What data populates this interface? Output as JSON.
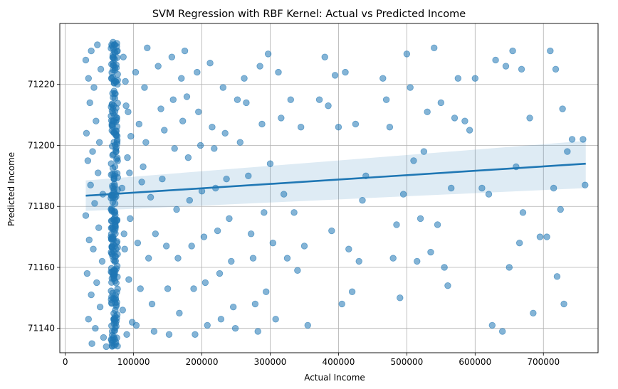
{
  "chart_data": {
    "type": "scatter",
    "title": "SVM Regression with RBF Kernel: Actual vs Predicted Income",
    "xlabel": "Actual Income",
    "ylabel": "Predicted Income",
    "xlim": [
      -8000,
      780000
    ],
    "ylim": [
      71132,
      71240
    ],
    "xticks": [
      0,
      100000,
      200000,
      300000,
      400000,
      500000,
      600000,
      700000
    ],
    "yticks": [
      71140,
      71160,
      71180,
      71200,
      71220
    ],
    "grid": true,
    "point_color": "#1f77b4",
    "point_alpha": 0.55,
    "cluster": {
      "x": 72000,
      "x_spread": 10000,
      "y_range": [
        71134,
        71234
      ],
      "count": 260
    },
    "points": [
      [
        30000,
        71228
      ],
      [
        34000,
        71222
      ],
      [
        38000,
        71231
      ],
      [
        42000,
        71219
      ],
      [
        47000,
        71233
      ],
      [
        52000,
        71225
      ],
      [
        36000,
        71214
      ],
      [
        45000,
        71208
      ],
      [
        31000,
        71204
      ],
      [
        50000,
        71201
      ],
      [
        40000,
        71198
      ],
      [
        33000,
        71195
      ],
      [
        48000,
        71191
      ],
      [
        37000,
        71187
      ],
      [
        55000,
        71184
      ],
      [
        43000,
        71181
      ],
      [
        30000,
        71177
      ],
      [
        49000,
        71173
      ],
      [
        35000,
        71169
      ],
      [
        41000,
        71166
      ],
      [
        54000,
        71162
      ],
      [
        32000,
        71158
      ],
      [
        46000,
        71155
      ],
      [
        38000,
        71151
      ],
      [
        51000,
        71147
      ],
      [
        34000,
        71143
      ],
      [
        44000,
        71140
      ],
      [
        56000,
        71137
      ],
      [
        39000,
        71135
      ],
      [
        60000,
        71134
      ],
      [
        85000,
        71229
      ],
      [
        88000,
        71221
      ],
      [
        92000,
        71211
      ],
      [
        96000,
        71203
      ],
      [
        91000,
        71196
      ],
      [
        83000,
        71186
      ],
      [
        95000,
        71176
      ],
      [
        87000,
        71166
      ],
      [
        93000,
        71156
      ],
      [
        84000,
        71146
      ],
      [
        90000,
        71138
      ],
      [
        98000,
        71142
      ],
      [
        86000,
        71171
      ],
      [
        94000,
        71191
      ],
      [
        89000,
        71213
      ],
      [
        103000,
        71224
      ],
      [
        108000,
        71207
      ],
      [
        112000,
        71188
      ],
      [
        106000,
        71168
      ],
      [
        110000,
        71153
      ],
      [
        104000,
        71141
      ],
      [
        116000,
        71219
      ],
      [
        120000,
        71232
      ],
      [
        118000,
        71201
      ],
      [
        125000,
        71183
      ],
      [
        122000,
        71163
      ],
      [
        127000,
        71148
      ],
      [
        114000,
        71193
      ],
      [
        130000,
        71139
      ],
      [
        132000,
        71171
      ],
      [
        136000,
        71226
      ],
      [
        140000,
        71212
      ],
      [
        145000,
        71205
      ],
      [
        142000,
        71189
      ],
      [
        148000,
        71167
      ],
      [
        150000,
        71153
      ],
      [
        152000,
        71138
      ],
      [
        156000,
        71229
      ],
      [
        158000,
        71215
      ],
      [
        160000,
        71199
      ],
      [
        163000,
        71179
      ],
      [
        165000,
        71163
      ],
      [
        167000,
        71145
      ],
      [
        170000,
        71222
      ],
      [
        172000,
        71208
      ],
      [
        175000,
        71231
      ],
      [
        178000,
        71216
      ],
      [
        180000,
        71196
      ],
      [
        182000,
        71182
      ],
      [
        185000,
        71167
      ],
      [
        188000,
        71153
      ],
      [
        190000,
        71138
      ],
      [
        193000,
        71224
      ],
      [
        195000,
        71211
      ],
      [
        198000,
        71200
      ],
      [
        200000,
        71185
      ],
      [
        203000,
        71170
      ],
      [
        205000,
        71155
      ],
      [
        208000,
        71141
      ],
      [
        212000,
        71227
      ],
      [
        215000,
        71206
      ],
      [
        218000,
        71199
      ],
      [
        220000,
        71186
      ],
      [
        223000,
        71172
      ],
      [
        226000,
        71158
      ],
      [
        228000,
        71143
      ],
      [
        231000,
        71219
      ],
      [
        234000,
        71204
      ],
      [
        236000,
        71189
      ],
      [
        240000,
        71176
      ],
      [
        243000,
        71162
      ],
      [
        246000,
        71147
      ],
      [
        249000,
        71140
      ],
      [
        252000,
        71215
      ],
      [
        256000,
        71201
      ],
      [
        262000,
        71222
      ],
      [
        265000,
        71214
      ],
      [
        268000,
        71190
      ],
      [
        272000,
        71171
      ],
      [
        275000,
        71163
      ],
      [
        278000,
        71148
      ],
      [
        282000,
        71139
      ],
      [
        285000,
        71226
      ],
      [
        288000,
        71207
      ],
      [
        291000,
        71178
      ],
      [
        294000,
        71152
      ],
      [
        297000,
        71230
      ],
      [
        300000,
        71194
      ],
      [
        304000,
        71168
      ],
      [
        308000,
        71143
      ],
      [
        312000,
        71224
      ],
      [
        316000,
        71209
      ],
      [
        320000,
        71184
      ],
      [
        325000,
        71163
      ],
      [
        330000,
        71215
      ],
      [
        335000,
        71178
      ],
      [
        340000,
        71159
      ],
      [
        345000,
        71206
      ],
      [
        350000,
        71167
      ],
      [
        355000,
        71141
      ],
      [
        372000,
        71215
      ],
      [
        380000,
        71229
      ],
      [
        385000,
        71213
      ],
      [
        390000,
        71172
      ],
      [
        395000,
        71223
      ],
      [
        400000,
        71206
      ],
      [
        405000,
        71148
      ],
      [
        410000,
        71224
      ],
      [
        415000,
        71166
      ],
      [
        420000,
        71152
      ],
      [
        425000,
        71207
      ],
      [
        430000,
        71162
      ],
      [
        435000,
        71182
      ],
      [
        440000,
        71190
      ],
      [
        465000,
        71222
      ],
      [
        470000,
        71215
      ],
      [
        475000,
        71206
      ],
      [
        480000,
        71163
      ],
      [
        485000,
        71174
      ],
      [
        490000,
        71150
      ],
      [
        495000,
        71184
      ],
      [
        500000,
        71230
      ],
      [
        505000,
        71219
      ],
      [
        510000,
        71195
      ],
      [
        515000,
        71162
      ],
      [
        520000,
        71176
      ],
      [
        525000,
        71198
      ],
      [
        530000,
        71211
      ],
      [
        535000,
        71165
      ],
      [
        540000,
        71232
      ],
      [
        545000,
        71174
      ],
      [
        550000,
        71214
      ],
      [
        555000,
        71160
      ],
      [
        560000,
        71154
      ],
      [
        565000,
        71186
      ],
      [
        570000,
        71209
      ],
      [
        575000,
        71222
      ],
      [
        585000,
        71208
      ],
      [
        592000,
        71205
      ],
      [
        600000,
        71222
      ],
      [
        610000,
        71186
      ],
      [
        620000,
        71184
      ],
      [
        625000,
        71141
      ],
      [
        630000,
        71228
      ],
      [
        640000,
        71139
      ],
      [
        645000,
        71226
      ],
      [
        650000,
        71160
      ],
      [
        655000,
        71231
      ],
      [
        660000,
        71193
      ],
      [
        665000,
        71168
      ],
      [
        668000,
        71225
      ],
      [
        670000,
        71178
      ],
      [
        680000,
        71209
      ],
      [
        685000,
        71145
      ],
      [
        695000,
        71170
      ],
      [
        705000,
        71170
      ],
      [
        710000,
        71231
      ],
      [
        715000,
        71186
      ],
      [
        718000,
        71225
      ],
      [
        720000,
        71157
      ],
      [
        725000,
        71179
      ],
      [
        728000,
        71212
      ],
      [
        730000,
        71148
      ],
      [
        735000,
        71198
      ],
      [
        742000,
        71202
      ],
      [
        758000,
        71202
      ],
      [
        761000,
        71187
      ]
    ],
    "regression": {
      "x": [
        30000,
        762000
      ],
      "y": [
        71183.5,
        71194
      ],
      "ci_lower": [
        71178.5,
        71186
      ],
      "ci_upper": [
        71188.5,
        71201.5
      ],
      "color": "#1f77b4"
    }
  }
}
